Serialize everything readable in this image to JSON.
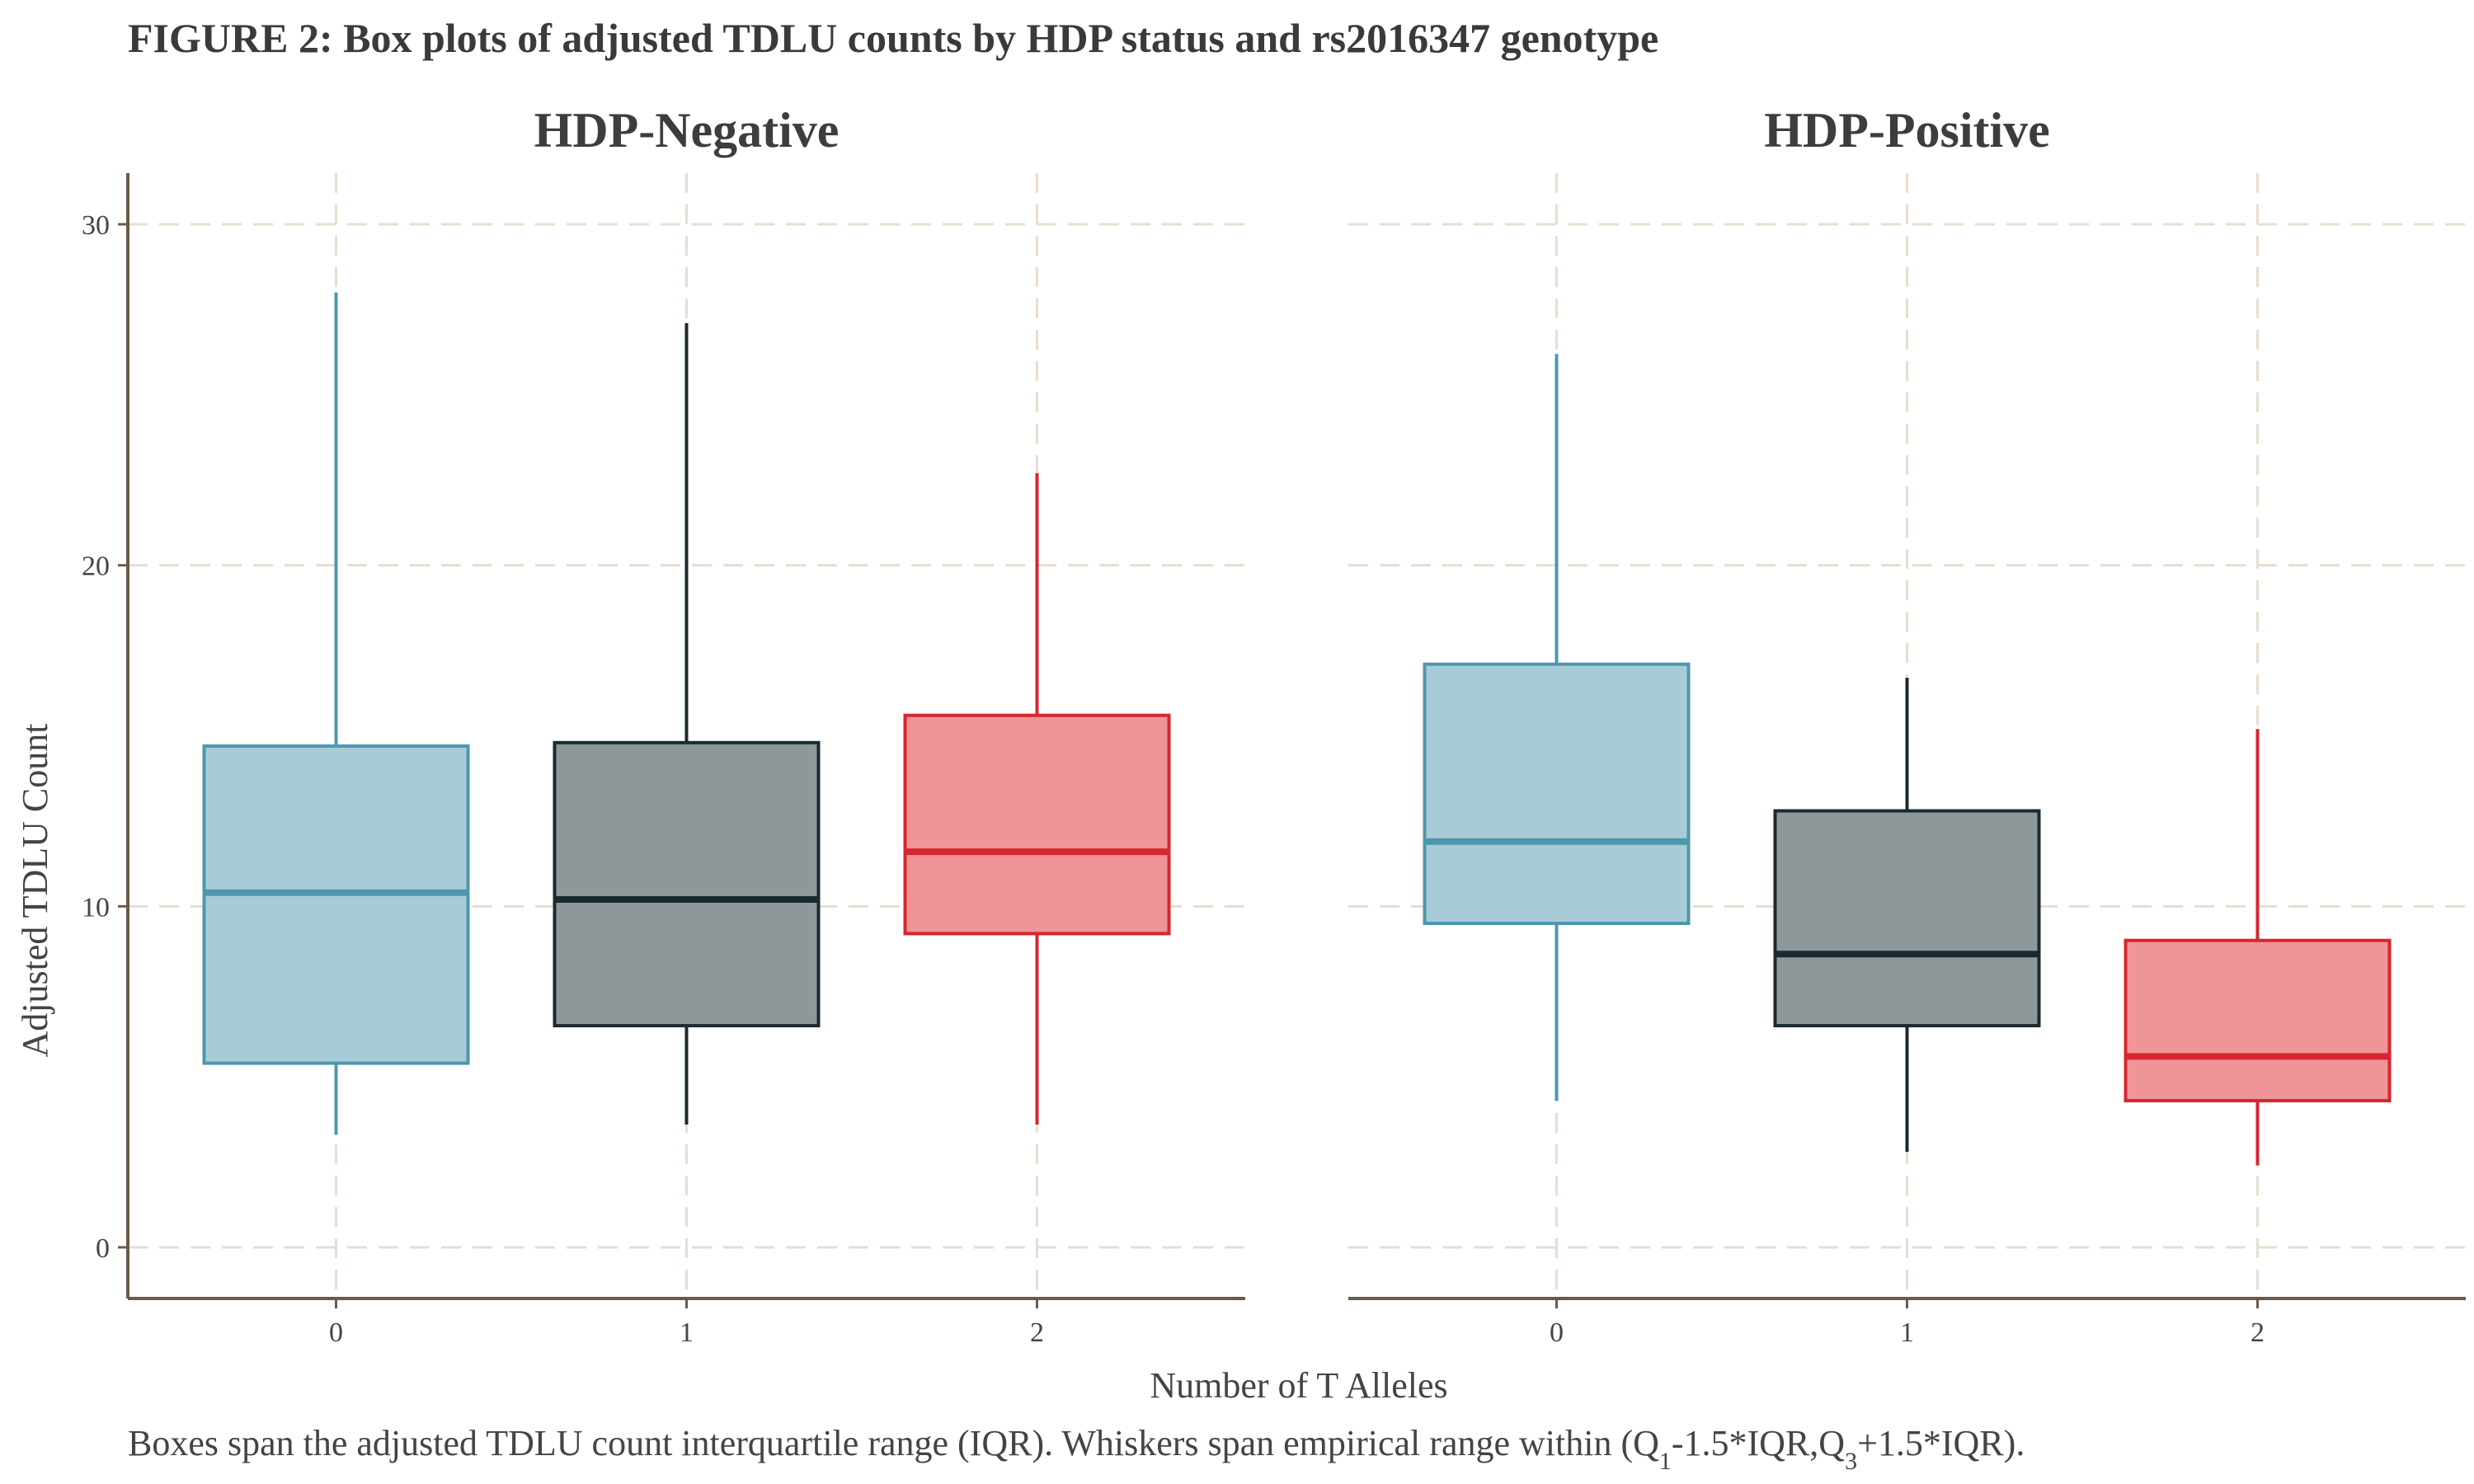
{
  "caption": {
    "prefix": "Boxes span the adjusted TDLU count interquartile range (IQR). Whiskers span empirical range within (Q",
    "sub1": "1",
    "mid": "-1.5*IQR,Q",
    "sub3": "3",
    "suffix": "+1.5*IQR)."
  },
  "colors": {
    "0": {
      "fill": "#a8ccd7",
      "stroke": "#4f97ae"
    },
    "1": {
      "fill": "#8e9799",
      "stroke": "#1a2a30"
    },
    "2": {
      "fill": "#ef9497",
      "stroke": "#d6262f"
    }
  },
  "chart_data": {
    "type": "box",
    "title": "FIGURE 2: Box plots of adjusted TDLU counts by HDP status and rs2016347 genotype",
    "xlabel": "Number of T Alleles",
    "ylabel": "Adjusted TDLU Count",
    "ylim": [
      -1.5,
      31.5
    ],
    "yticks": [
      0,
      10,
      20,
      30
    ],
    "categories": [
      "0",
      "1",
      "2"
    ],
    "grid": true,
    "panels": [
      {
        "name": "HDP-Negative",
        "boxes": [
          {
            "category": "0",
            "whisker_low": 3.3,
            "q1": 5.4,
            "median": 10.4,
            "q3": 14.7,
            "whisker_high": 28.0
          },
          {
            "category": "1",
            "whisker_low": 3.6,
            "q1": 6.5,
            "median": 10.2,
            "q3": 14.8,
            "whisker_high": 27.1
          },
          {
            "category": "2",
            "whisker_low": 3.6,
            "q1": 9.2,
            "median": 11.6,
            "q3": 15.6,
            "whisker_high": 22.7
          }
        ]
      },
      {
        "name": "HDP-Positive",
        "boxes": [
          {
            "category": "0",
            "whisker_low": 4.3,
            "q1": 9.5,
            "median": 11.9,
            "q3": 17.1,
            "whisker_high": 26.2
          },
          {
            "category": "1",
            "whisker_low": 2.8,
            "q1": 6.5,
            "median": 8.6,
            "q3": 12.8,
            "whisker_high": 16.7
          },
          {
            "category": "2",
            "whisker_low": 2.4,
            "q1": 4.3,
            "median": 5.6,
            "q3": 9.0,
            "whisker_high": 15.2
          }
        ]
      }
    ]
  }
}
